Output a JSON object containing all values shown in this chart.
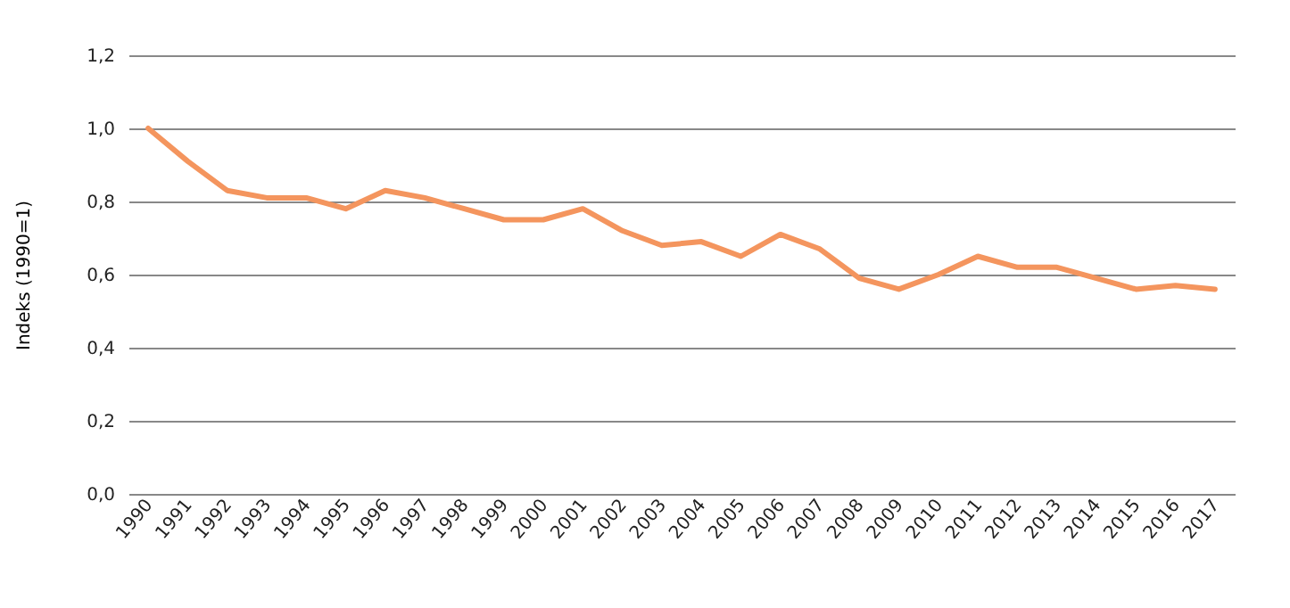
{
  "chart_data": {
    "type": "line",
    "ylabel": "Indeks (1990=1)",
    "categories": [
      "1990",
      "1991",
      "1992",
      "1993",
      "1994",
      "1995",
      "1996",
      "1997",
      "1998",
      "1999",
      "2000",
      "2001",
      "2002",
      "2003",
      "2004",
      "2005",
      "2006",
      "2007",
      "2008",
      "2009",
      "2010",
      "2011",
      "2012",
      "2013",
      "2014",
      "2015",
      "2016",
      "2017"
    ],
    "series": [
      {
        "color": "#f4955e",
        "values": [
          1.0,
          0.91,
          0.83,
          0.81,
          0.81,
          0.78,
          0.83,
          0.81,
          0.78,
          0.75,
          0.75,
          0.78,
          0.72,
          0.68,
          0.69,
          0.65,
          0.71,
          0.67,
          0.59,
          0.56,
          0.6,
          0.65,
          0.62,
          0.62,
          0.59,
          0.56,
          0.57,
          0.56
        ]
      }
    ],
    "ylim": [
      0,
      1.2
    ],
    "yticks": [
      {
        "value": 0,
        "label": "0,0"
      },
      {
        "value": 0.2,
        "label": "0,2"
      },
      {
        "value": 0.4,
        "label": "0,4"
      },
      {
        "value": 0.6,
        "label": "0,6"
      },
      {
        "value": 0.8,
        "label": "0,8"
      },
      {
        "value": 1.0,
        "label": "1,0"
      },
      {
        "value": 1.2,
        "label": "1,2"
      }
    ],
    "grid": "y",
    "marker": "none",
    "line_style": "solid"
  }
}
